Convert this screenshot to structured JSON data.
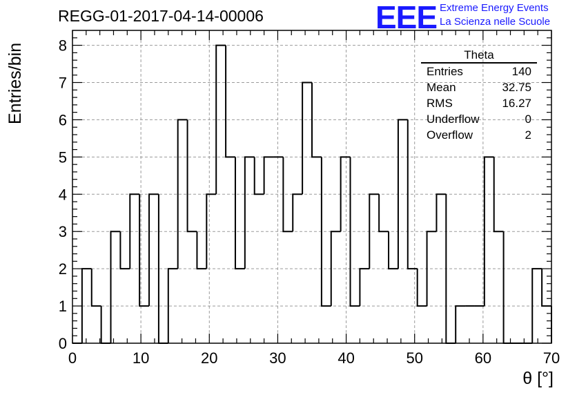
{
  "run_title": "REGG-01-2017-04-14-00006",
  "logo": {
    "mark": "EEE",
    "line1": "Extreme Energy Events",
    "line2": "La Scienza nelle Scuole",
    "color": "#1a1aff"
  },
  "stats_box": {
    "title": "Theta",
    "rows": [
      {
        "label": "Entries",
        "value": "140"
      },
      {
        "label": "Mean",
        "value": "32.75"
      },
      {
        "label": "RMS",
        "value": "16.27"
      },
      {
        "label": "Underflow",
        "value": "0"
      },
      {
        "label": "Overflow",
        "value": "2"
      }
    ]
  },
  "chart_data": {
    "type": "histogram",
    "title": "REGG-01-2017-04-14-00006",
    "xlabel": "θ [°]",
    "ylabel": "Entries/bin",
    "xlim": [
      0,
      70
    ],
    "ylim": [
      0,
      8.4
    ],
    "bin_width": 1.4,
    "xticks": [
      0,
      10,
      20,
      30,
      40,
      50,
      60,
      70
    ],
    "yticks": [
      0,
      1,
      2,
      3,
      4,
      5,
      6,
      7,
      8
    ],
    "grid": true,
    "legend": "top-right stats box",
    "series": [
      {
        "bin_edges": [
          0,
          1.4,
          2.8,
          4.2,
          5.6,
          7,
          8.4,
          9.8,
          11.2,
          12.6,
          14,
          15.4,
          16.8,
          18.2,
          19.6,
          21,
          22.4,
          23.8,
          25.2,
          26.6,
          28,
          29.4,
          30.8,
          32.2,
          33.6,
          35,
          36.4,
          37.8,
          39.2,
          40.6,
          42,
          43.4,
          44.8,
          46.2,
          47.6,
          49,
          50.4,
          51.8,
          53.2,
          54.6,
          56,
          57.4,
          58.8,
          60.2,
          61.6,
          63,
          64.4,
          65.8,
          67.2,
          68.6,
          70
        ],
        "values": [
          0,
          2,
          1,
          0,
          3,
          2,
          4,
          1,
          4,
          0,
          2,
          6,
          3,
          2,
          4,
          8,
          5,
          2,
          5,
          4,
          5,
          5,
          3,
          4,
          7,
          5,
          1,
          3,
          5,
          1,
          2,
          4,
          3,
          2,
          6,
          2,
          1,
          3,
          4,
          0,
          1,
          1,
          1,
          5,
          3,
          0,
          0,
          0,
          2,
          1
        ]
      }
    ]
  }
}
